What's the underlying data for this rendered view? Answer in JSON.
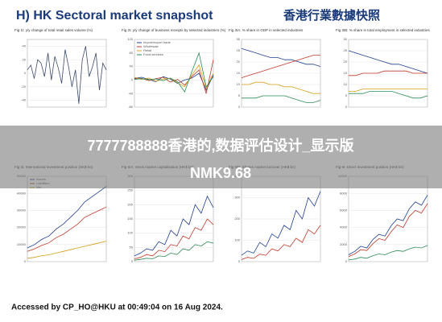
{
  "header": {
    "title": "H) HK Sectoral market snapshot",
    "title_zh": "香港行業數據快照"
  },
  "panels": [
    {
      "title": "Fig 1I: y/y change of total retail sales volume (%)",
      "ylim": [
        -50,
        50
      ],
      "yticks": [
        -40,
        -20,
        0,
        20,
        40
      ],
      "series": [
        {
          "color": "#3b4a6b",
          "values": [
            5,
            12,
            -8,
            20,
            15,
            -5,
            30,
            -10,
            25,
            8,
            -15,
            35,
            10,
            -20,
            5,
            -45,
            20,
            40,
            -5,
            10,
            30,
            -25,
            15,
            5
          ]
        }
      ]
    },
    {
      "title": "Fig 2I: y/y change of business receipts by selected industries (%)",
      "ylim": [
        -80,
        120
      ],
      "yticks": [
        -80,
        -40,
        0,
        40,
        80,
        120
      ],
      "series": [
        {
          "name": "Import/export trade",
          "color": "#1f3f8f",
          "values": [
            5,
            8,
            2,
            -5,
            10,
            3,
            -10,
            0,
            6,
            20,
            -30,
            15
          ]
        },
        {
          "name": "Wholesale",
          "color": "#c0392b",
          "values": [
            3,
            5,
            -2,
            4,
            8,
            -6,
            2,
            -15,
            10,
            30,
            -40,
            60
          ]
        },
        {
          "name": "Retail",
          "color": "#d4a017",
          "values": [
            8,
            2,
            6,
            -4,
            3,
            5,
            -8,
            -20,
            15,
            45,
            -25,
            20
          ]
        },
        {
          "name": "Food services",
          "color": "#2e8b57",
          "values": [
            2,
            4,
            1,
            3,
            -2,
            6,
            -5,
            -35,
            25,
            80,
            -20,
            10
          ]
        }
      ]
    },
    {
      "title": "Fig 3IA: % share in GDP in selected industries",
      "ylim": [
        0,
        30
      ],
      "yticks": [
        0,
        5,
        10,
        15,
        20,
        25,
        30
      ],
      "series": [
        {
          "color": "#1f3f8f",
          "values": [
            26,
            25,
            24,
            23,
            22,
            22,
            21,
            21,
            20,
            19,
            19,
            18
          ]
        },
        {
          "color": "#c0392b",
          "values": [
            13,
            14,
            15,
            16,
            17,
            18,
            19,
            20,
            21,
            22,
            23,
            23
          ]
        },
        {
          "color": "#d4a017",
          "values": [
            10,
            10,
            11,
            11,
            10,
            10,
            9,
            9,
            8,
            7,
            6,
            6
          ]
        },
        {
          "color": "#2e8b57",
          "values": [
            4,
            4,
            4,
            5,
            5,
            5,
            5,
            4,
            3,
            2,
            2,
            3
          ]
        }
      ]
    },
    {
      "title": "Fig 3IB: % share in total employment in selected industries",
      "ylim": [
        0,
        30
      ],
      "yticks": [
        0,
        5,
        10,
        15,
        20,
        25,
        30
      ],
      "series": [
        {
          "color": "#1f3f8f",
          "values": [
            25,
            24,
            23,
            22,
            21,
            20,
            19,
            19,
            18,
            17,
            16,
            15
          ]
        },
        {
          "color": "#c0392b",
          "values": [
            14,
            14,
            15,
            15,
            15,
            16,
            16,
            16,
            16,
            15,
            15,
            15
          ]
        },
        {
          "color": "#d4a017",
          "values": [
            7,
            7,
            8,
            8,
            8,
            8,
            8,
            8,
            8,
            8,
            8,
            8
          ]
        },
        {
          "color": "#2e8b57",
          "values": [
            6,
            6,
            6,
            7,
            7,
            7,
            7,
            6,
            5,
            4,
            4,
            5
          ]
        }
      ]
    },
    {
      "title": "Fig 4I: International investment position (HK$ bn)",
      "ylim": [
        0,
        50000
      ],
      "yticks": [
        0,
        10000,
        20000,
        30000,
        40000,
        50000
      ],
      "series": [
        {
          "name": "Assets",
          "color": "#1f3f8f",
          "values": [
            8000,
            10000,
            13000,
            15000,
            19000,
            22000,
            26000,
            30000,
            35000,
            38000,
            41000,
            44000
          ]
        },
        {
          "name": "Liabilities",
          "color": "#c0392b",
          "values": [
            6000,
            7500,
            9500,
            11000,
            14000,
            16000,
            19000,
            22000,
            26000,
            28000,
            30000,
            32000
          ]
        },
        {
          "name": "Net",
          "color": "#d4a017",
          "values": [
            2000,
            2500,
            3500,
            4000,
            5000,
            6000,
            7000,
            8000,
            9000,
            10000,
            11000,
            12000
          ]
        }
      ]
    },
    {
      "title": "Fig 5IA: Stock market capitalisation (HK$ bn)",
      "ylim": [
        0,
        300
      ],
      "yticks": [
        0,
        50,
        100,
        150,
        200,
        250,
        300
      ],
      "series": [
        {
          "color": "#1f3f8f",
          "values": [
            20,
            30,
            45,
            40,
            70,
            60,
            110,
            90,
            150,
            130,
            200,
            170,
            230,
            190
          ]
        },
        {
          "color": "#c0392b",
          "values": [
            10,
            15,
            25,
            20,
            40,
            35,
            60,
            55,
            90,
            80,
            120,
            110,
            150,
            130
          ]
        },
        {
          "color": "#2e8b57",
          "values": [
            5,
            8,
            12,
            10,
            20,
            18,
            30,
            25,
            45,
            40,
            60,
            55,
            70,
            65
          ]
        }
      ]
    },
    {
      "title": "Fig 5IB: Shares market turnover (HK$ bn)",
      "ylim": [
        0,
        400
      ],
      "yticks": [
        0,
        100,
        200,
        300,
        400
      ],
      "series": [
        {
          "color": "#1f3f8f",
          "values": [
            30,
            50,
            40,
            90,
            70,
            130,
            110,
            170,
            150,
            240,
            200,
            300,
            260,
            330
          ]
        },
        {
          "color": "#c0392b",
          "values": [
            10,
            20,
            15,
            35,
            30,
            60,
            50,
            80,
            70,
            110,
            90,
            150,
            130,
            170
          ]
        }
      ]
    },
    {
      "title": "Fig 6I: Direct investment position (HK$ bn)",
      "ylim": [
        0,
        10000
      ],
      "yticks": [
        0,
        2000,
        4000,
        6000,
        8000,
        10000
      ],
      "series": [
        {
          "color": "#1f3f8f",
          "values": [
            800,
            1200,
            1800,
            1600,
            2600,
            3200,
            3000,
            4200,
            5000,
            4800,
            6200,
            7000,
            6600,
            7800
          ]
        },
        {
          "color": "#c0392b",
          "values": [
            600,
            900,
            1400,
            1300,
            2100,
            2700,
            2500,
            3500,
            4300,
            4000,
            5300,
            6000,
            5700,
            6800
          ]
        },
        {
          "color": "#2e8b57",
          "values": [
            200,
            300,
            500,
            400,
            700,
            900,
            800,
            1100,
            1300,
            1200,
            1500,
            1700,
            1600,
            1900
          ]
        }
      ]
    }
  ],
  "overlay": {
    "line1": "7777788888香港的,数据评估设计_显示版",
    "line2": "NMK9.68"
  },
  "footer": "Accessed by CP_HO@HKU at 00:49:04 on 16 Aug 2024."
}
